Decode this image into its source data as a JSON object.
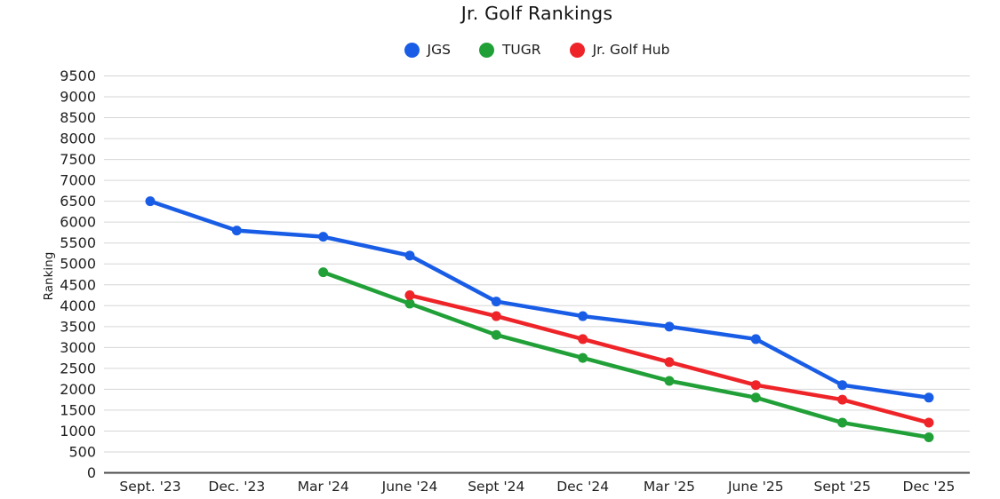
{
  "chart_data": {
    "type": "line",
    "title": "Jr. Golf Rankings",
    "xlabel": "",
    "ylabel": "Ranking",
    "categories": [
      "Sept. '23",
      "Dec. '23",
      "Mar '24",
      "June '24",
      "Sept '24",
      "Dec '24",
      "Mar '25",
      "June '25",
      "Sept '25",
      "Dec '25"
    ],
    "series": [
      {
        "name": "JGS",
        "color": "#195de6",
        "values": [
          6500,
          5800,
          5650,
          5200,
          4100,
          3750,
          3500,
          3200,
          2100,
          1800
        ]
      },
      {
        "name": "TUGR",
        "color": "#21a038",
        "values": [
          null,
          null,
          4800,
          4050,
          3300,
          2750,
          2200,
          1800,
          1200,
          850
        ]
      },
      {
        "name": "Jr. Golf Hub",
        "color": "#ee2428",
        "values": [
          null,
          null,
          null,
          4250,
          3750,
          3200,
          2650,
          2100,
          1750,
          1200
        ]
      }
    ],
    "ylim": [
      0,
      9500
    ],
    "ytick_step": 500,
    "grid": true,
    "legend_position": "top",
    "colors": {
      "grid": "#d6d6d6",
      "axis": "#4a4a4a",
      "tick_text": "#1f1f1f"
    }
  }
}
